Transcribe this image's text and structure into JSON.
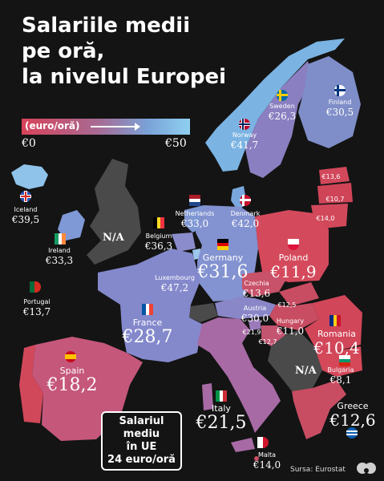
{
  "title": {
    "line1": "Salariile medii",
    "line2": "pe oră,",
    "line3": "la nivelul Europei"
  },
  "legend": {
    "unit": "(euro/oră)",
    "min": "€0",
    "max": "€50",
    "color_low": "#d8435a",
    "color_mid": "#a86a93",
    "color_high": "#8fd0f0"
  },
  "no_data_label": "N/A",
  "countries": {
    "iceland": {
      "name": "Iceland",
      "value": "€39,5"
    },
    "ireland": {
      "name": "Ireland",
      "value": "€33,3"
    },
    "portugal": {
      "name": "Portugal",
      "value": "€13,7"
    },
    "spain": {
      "name": "Spain",
      "value": "€18,2"
    },
    "france": {
      "name": "France",
      "value": "€28,7"
    },
    "belgium": {
      "name": "Belgium",
      "value": "€36,3"
    },
    "netherlands": {
      "name": "Netherlands",
      "value": "€33,0"
    },
    "luxembourg": {
      "name": "Luxembourg",
      "value": "€47,2"
    },
    "germany": {
      "name": "Germany",
      "value": "€31,6"
    },
    "denmark": {
      "name": "Denmark",
      "value": "€42,0"
    },
    "norway": {
      "name": "Norway",
      "value": "€41,7"
    },
    "sweden": {
      "name": "Sweden",
      "value": "€26,3"
    },
    "finland": {
      "name": "Finland",
      "value": "€30,5"
    },
    "poland": {
      "name": "Poland",
      "value": "€11,9"
    },
    "czechia": {
      "name": "Czechia",
      "value": "€13,6"
    },
    "austria": {
      "name": "Austria",
      "value": "€30,0"
    },
    "hungary": {
      "name": "Hungary",
      "value": "€11,0"
    },
    "romania": {
      "name": "Romania",
      "value": "€10,4"
    },
    "bulgaria": {
      "name": "Bulgaria",
      "value": "€8,1"
    },
    "greece": {
      "name": "Greece",
      "value": "€12,6"
    },
    "italy": {
      "name": "Italy",
      "value": "€21,5"
    },
    "malta": {
      "name": "Malta",
      "value": "€14,0"
    },
    "estonia": {
      "value": "€13,6"
    },
    "latvia": {
      "value": "€10,7"
    },
    "lithuania": {
      "value": "€14,0"
    },
    "slovakia": {
      "value": "€12,5"
    },
    "slovenia": {
      "value": "€21,9"
    },
    "croatia": {
      "value": "€12,7"
    }
  },
  "eu_box": {
    "line1": "Salariul",
    "line2": "mediu",
    "line3": "în UE",
    "line4": "24 euro/oră"
  },
  "source": "Sursa: Eurostat"
}
